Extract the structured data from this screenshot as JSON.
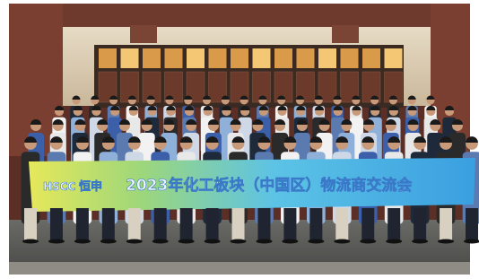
{
  "banner": {
    "logo": "HSCC",
    "brand": "恒申",
    "title": "2023年化工板块（中国区）物流商交流会"
  }
}
